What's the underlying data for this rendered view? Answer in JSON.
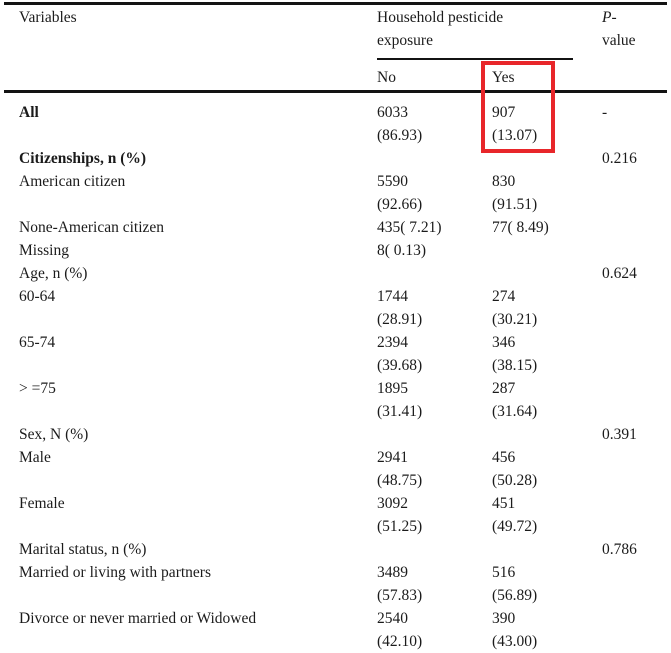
{
  "header": {
    "variables": "Variables",
    "group": "Household pesticide exposure",
    "pvalue_p": "P",
    "pvalue_rest": "-value",
    "sub_no": "No",
    "sub_yes": "Yes"
  },
  "highlight": {
    "color": "#e8262a",
    "marks": "Yes column: 907 (13.07)"
  },
  "lines": [
    {
      "c0": "All",
      "bold": true,
      "c1": "6033",
      "c2": "907",
      "c3": "-"
    },
    {
      "c1": "(86.93)",
      "c2": "(13.07)"
    },
    {
      "c0": "Citizenships, n (%)",
      "bold": true,
      "c3": "0.216"
    },
    {
      "c0": "American citizen",
      "c1": "5590",
      "c2": "830"
    },
    {
      "c1": "(92.66)",
      "c2": "(91.51)"
    },
    {
      "c0": "None-American citizen",
      "c1": "435( 7.21)",
      "c2": "77( 8.49)"
    },
    {
      "c0": "Missing",
      "c1": "8( 0.13)"
    },
    {
      "c0": "Age, n (%)",
      "c3": "0.624"
    },
    {
      "c0": "60-64",
      "c1": "1744",
      "c2": "274"
    },
    {
      "c1": "(28.91)",
      "c2": "(30.21)"
    },
    {
      "c0": "65-74",
      "c1": "2394",
      "c2": "346"
    },
    {
      "c1": "(39.68)",
      "c2": "(38.15)"
    },
    {
      "c0": "> =75",
      "c1": "1895",
      "c2": "287"
    },
    {
      "c1": "(31.41)",
      "c2": "(31.64)"
    },
    {
      "c0": "Sex, N (%)",
      "c3": "0.391"
    },
    {
      "c0": "Male",
      "c1": "2941",
      "c2": "456"
    },
    {
      "c1": "(48.75)",
      "c2": "(50.28)"
    },
    {
      "c0": "Female",
      "c1": "3092",
      "c2": "451"
    },
    {
      "c1": "(51.25)",
      "c2": "(49.72)"
    },
    {
      "c0": "Marital status, n (%)",
      "c3": "0.786"
    },
    {
      "c0": "Married or living with partners",
      "c1": "3489",
      "c2": "516"
    },
    {
      "c1": "(57.83)",
      "c2": "(56.89)"
    },
    {
      "c0": "Divorce or never married or Widowed",
      "c1": "2540",
      "c2": "390"
    },
    {
      "c1": "(42.10)",
      "c2": "(43.00)"
    }
  ]
}
